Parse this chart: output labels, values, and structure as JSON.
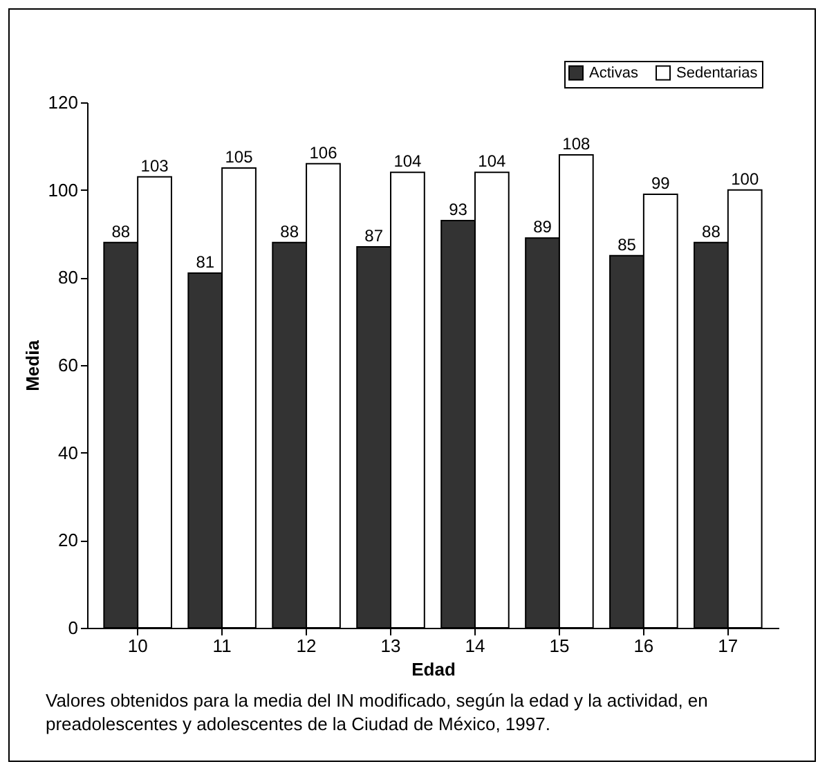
{
  "chart_data": {
    "type": "bar",
    "xlabel": "Edad",
    "ylabel": "Media",
    "categories": [
      "10",
      "11",
      "12",
      "13",
      "14",
      "15",
      "16",
      "17"
    ],
    "series": [
      {
        "name": "Activas",
        "color": "#333333",
        "values": [
          88,
          81,
          88,
          87,
          93,
          89,
          85,
          88
        ]
      },
      {
        "name": "Sedentarias",
        "color": "#ffffff",
        "values": [
          103,
          105,
          106,
          104,
          104,
          108,
          99,
          100
        ]
      }
    ],
    "ylim": [
      0,
      120
    ],
    "yticks": [
      0,
      20,
      40,
      60,
      80,
      100,
      120
    ],
    "grid": false,
    "data_labels": true,
    "legend": "top right",
    "annotations": [
      "Valores obtenidos para la media del IN modificado, según la edad y la actividad, en preadolescentes y adolescentes de la Ciudad de México, 1997."
    ]
  }
}
